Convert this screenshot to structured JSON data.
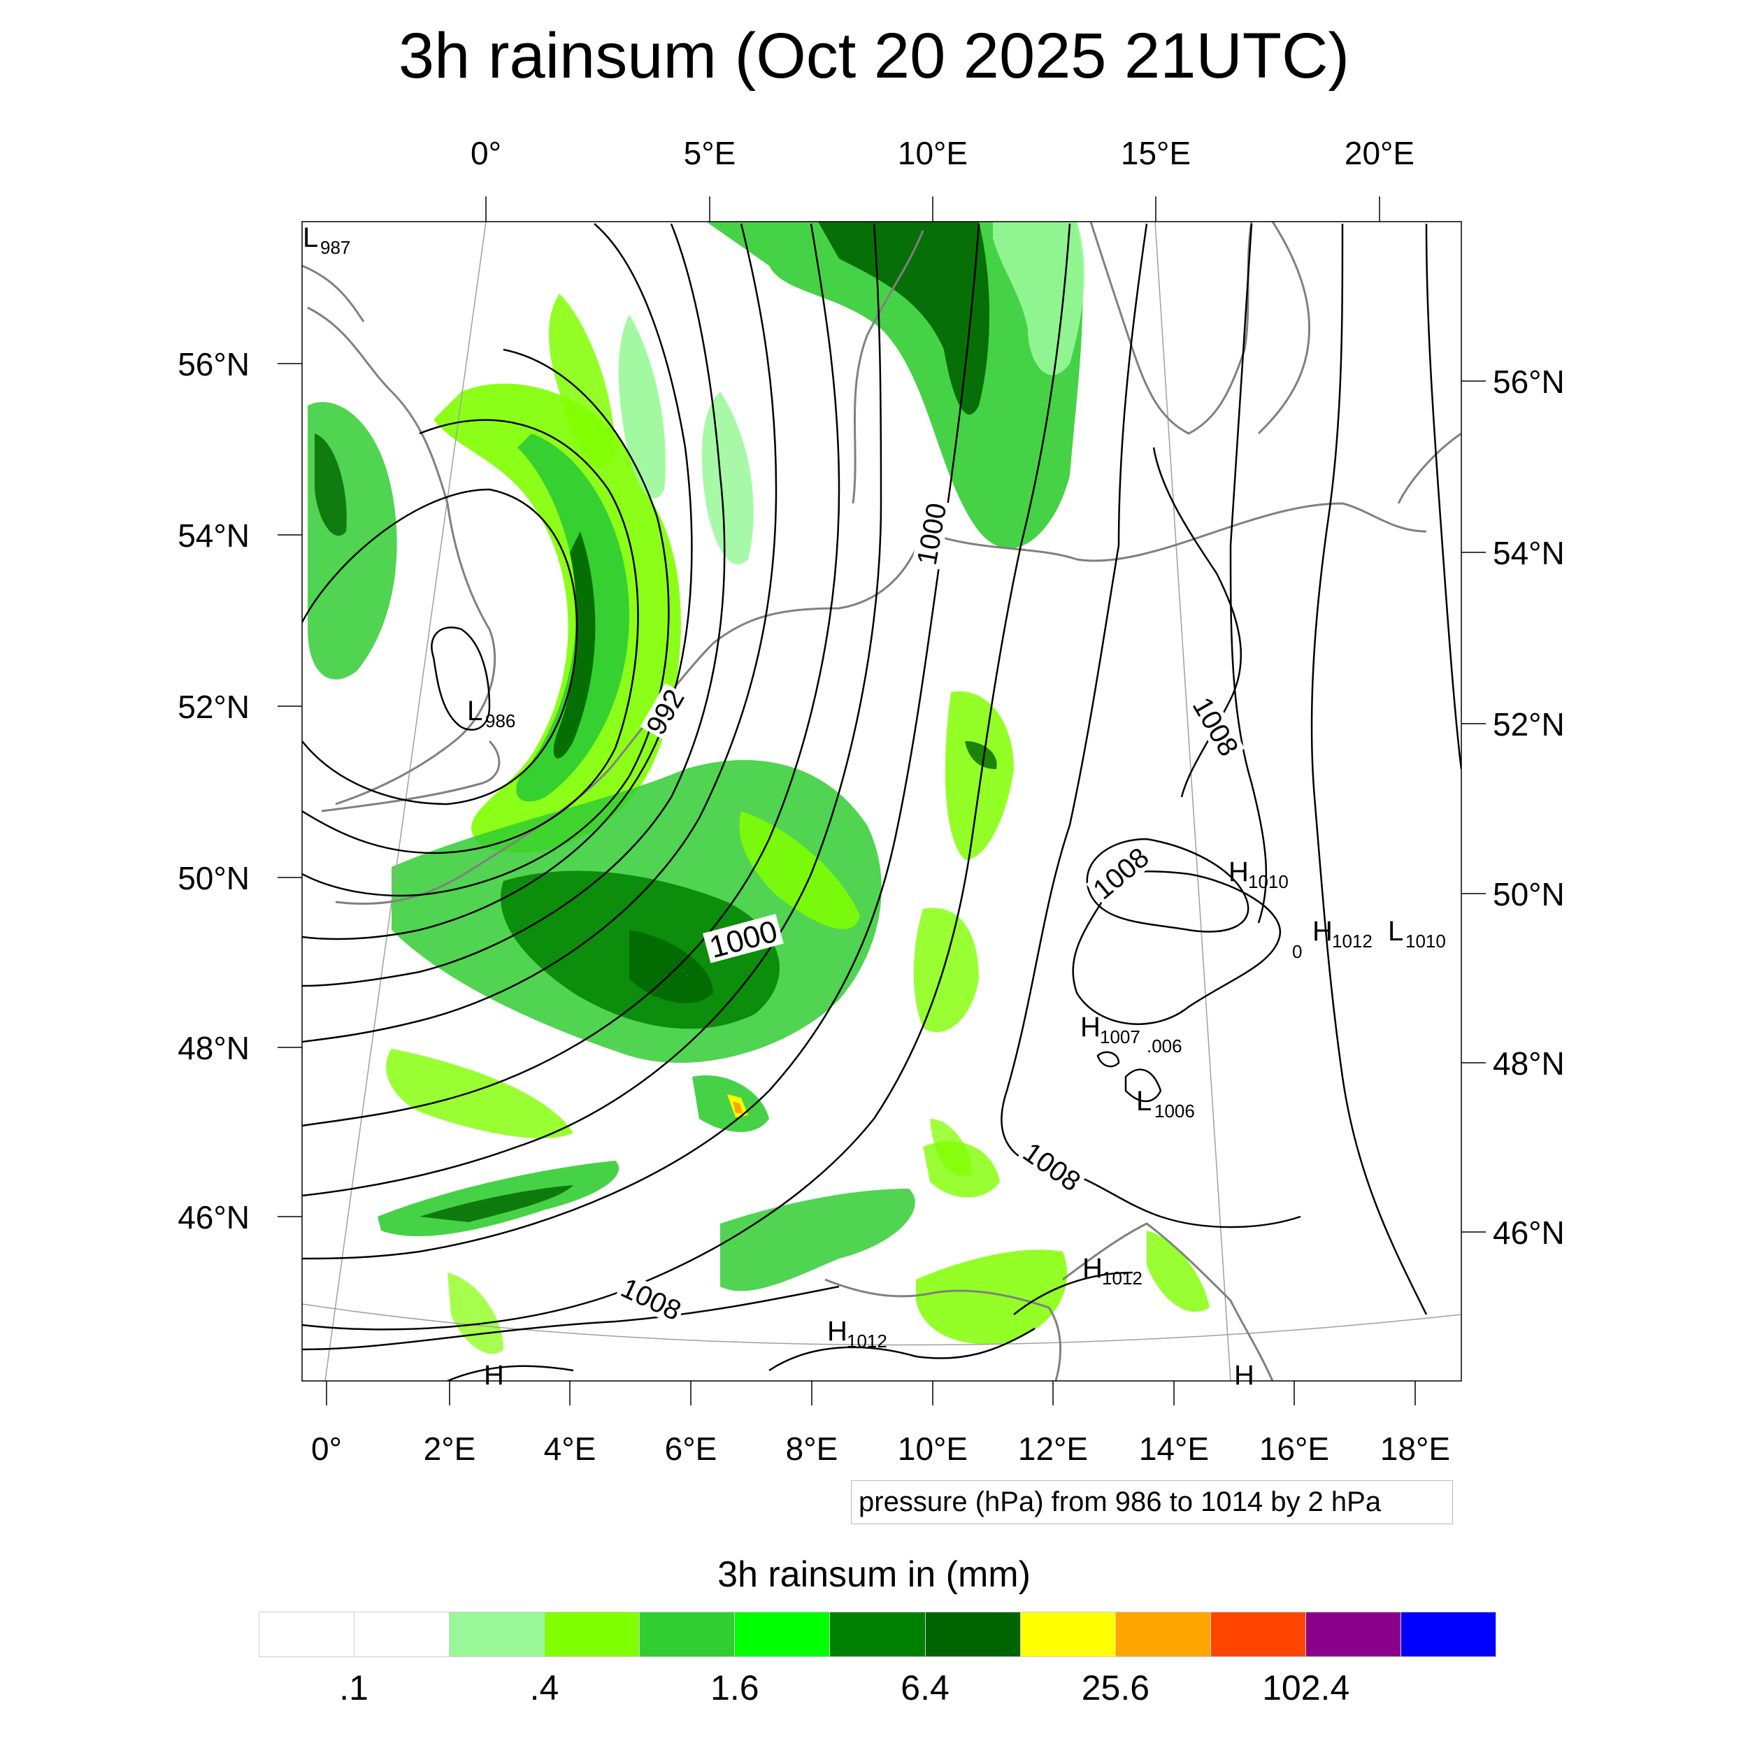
{
  "title": "3h rainsum (Oct 20 2025 21UTC)",
  "top_longitude_labels": [
    "0°",
    "5°E",
    "10°E",
    "15°E",
    "20°E"
  ],
  "bottom_longitude_labels": [
    "0°",
    "2°E",
    "4°E",
    "6°E",
    "8°E",
    "10°E",
    "12°E",
    "14°E",
    "16°E",
    "18°E"
  ],
  "left_latitude_labels": [
    "56°N",
    "54°N",
    "52°N",
    "50°N",
    "48°N",
    "46°N"
  ],
  "right_latitude_labels": [
    "56°N",
    "54°N",
    "52°N",
    "50°N",
    "48°N",
    "46°N"
  ],
  "pressure_systems": [
    {
      "letter": "L",
      "value": "987"
    },
    {
      "letter": "L",
      "value": "986"
    },
    {
      "letter": "H",
      "value": "1010"
    },
    {
      "letter": "H",
      "value": "1012"
    },
    {
      "letter": "L",
      "value": "1010"
    },
    {
      "letter": "H",
      "value": "1007"
    },
    {
      "letter": "",
      "value": ".006"
    },
    {
      "letter": "L",
      "value": "1006"
    },
    {
      "letter": "H",
      "value": "1012"
    },
    {
      "letter": "H",
      "value": "1012"
    },
    {
      "letter": "H",
      "value": ""
    },
    {
      "letter": "H",
      "value": ""
    }
  ],
  "contour_labels": [
    "1000",
    "992",
    "1000",
    "1008",
    "1008",
    "1008",
    "1008"
  ],
  "extra_mark": "0",
  "contour_note": "pressure (hPa) from 986 to 1014 by 2 hPa",
  "colorbar": {
    "title": "3h rainsum in (mm)",
    "colors": [
      "#ffffff",
      "#ffffff",
      "#98f898",
      "#80ff00",
      "#32cd32",
      "#00ff00",
      "#008000",
      "#006400",
      "#ffff00",
      "#ffa500",
      "#ff4500",
      "#8b008b",
      "#0000ff"
    ],
    "tick_labels": [
      ".1",
      ".4",
      "1.6",
      "6.4",
      "25.6",
      "102.4"
    ]
  },
  "colors": {
    "contour": "#000000",
    "coastline": "#808080",
    "graticule": "#a0a0a0",
    "frame": "#000000"
  }
}
